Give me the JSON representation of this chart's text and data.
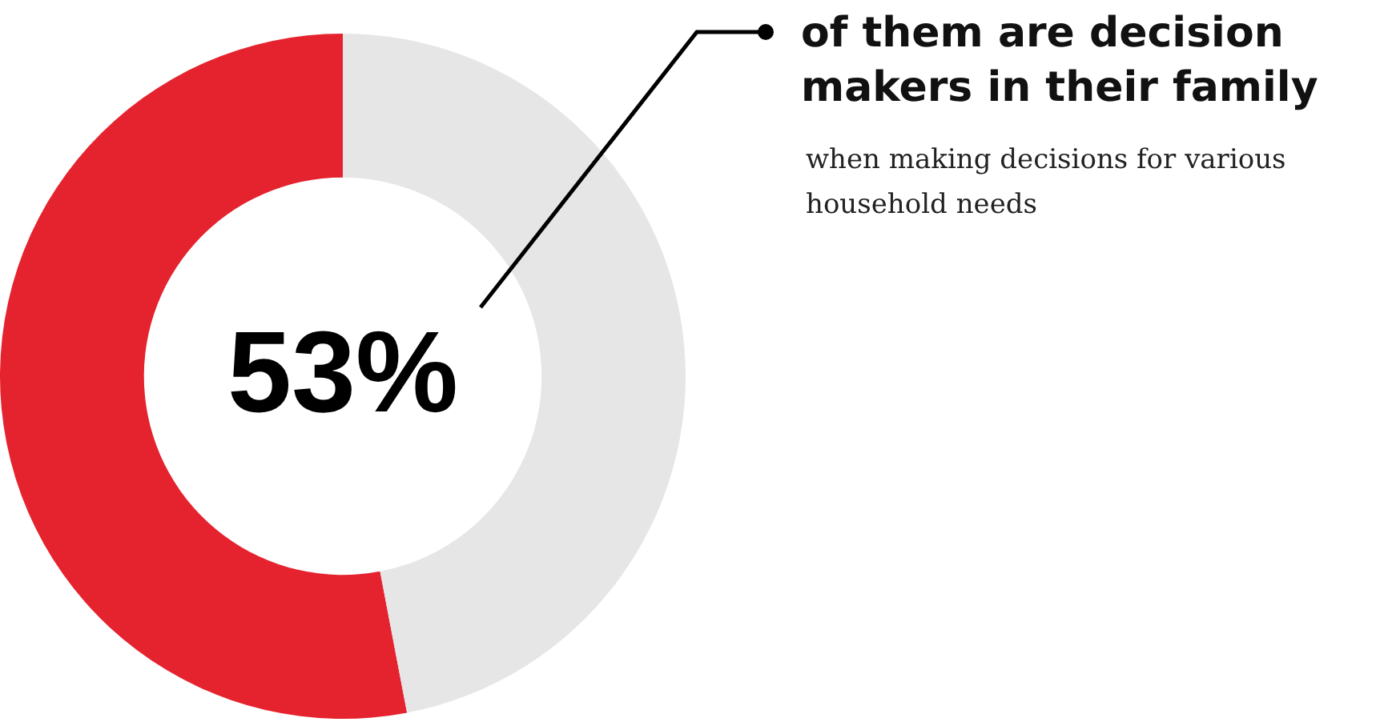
{
  "chart_data": {
    "type": "donut",
    "title": "of them are decision makers in their family",
    "subtitle": "when making decisions for various household needs",
    "categories": [
      null,
      null
    ],
    "values": [
      53,
      47
    ],
    "colors": [
      "#e5232f",
      "#e6e6e6"
    ],
    "value_labels": [
      "53%",
      null
    ],
    "legend": false
  }
}
